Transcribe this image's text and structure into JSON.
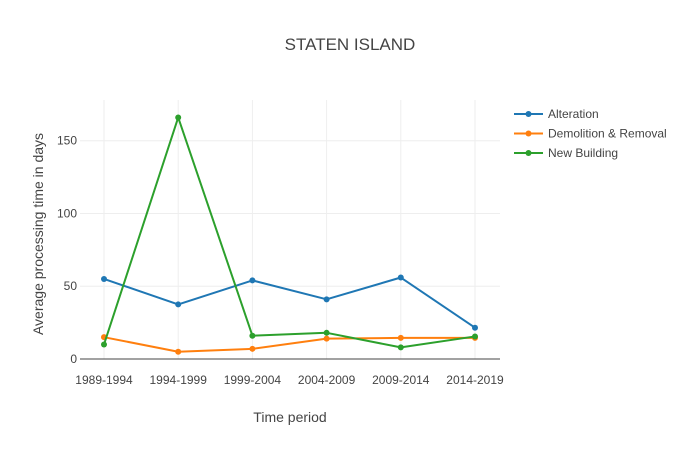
{
  "chart_data": {
    "type": "line",
    "title": "STATEN ISLAND",
    "xlabel": "Time period",
    "ylabel": "Average processing time in days",
    "categories": [
      "1989-1994",
      "1994-1999",
      "1999-2004",
      "2004-2009",
      "2009-2014",
      "2014-2019"
    ],
    "ylim": [
      0,
      178
    ],
    "yticks": [
      0,
      50,
      100,
      150
    ],
    "grid": true,
    "legend_position": "top-right",
    "series": [
      {
        "name": "Alteration",
        "color": "#1f77b4",
        "values": [
          55,
          37.5,
          54,
          41,
          56,
          21.5
        ]
      },
      {
        "name": "Demolition & Removal",
        "color": "#ff7f0e",
        "values": [
          15,
          5,
          7,
          14,
          14.5,
          14.5
        ]
      },
      {
        "name": "New Building",
        "color": "#2ca02c",
        "values": [
          10,
          166,
          16,
          18,
          8,
          15.5
        ]
      }
    ]
  }
}
